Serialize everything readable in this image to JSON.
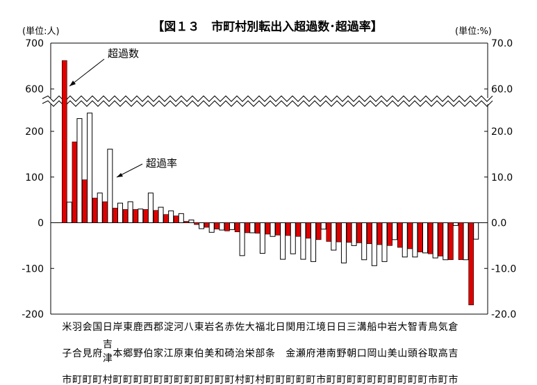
{
  "chart_data": {
    "type": "bar",
    "title": "【図１３　市町村別転出入超過数･超過率】",
    "left_unit": "(単位:人)",
    "right_unit": "(単位:%)",
    "series": [
      {
        "name": "超過数",
        "axis": "left",
        "color": "#e00000",
        "values": [
          662,
          177,
          94,
          54,
          46,
          32,
          29,
          29,
          29,
          27,
          18,
          15,
          3,
          -4,
          -10,
          -14,
          -18,
          -20,
          -22,
          -23,
          -25,
          -27,
          -28,
          -30,
          -34,
          -37,
          -41,
          -42,
          -43,
          -44,
          -46,
          -48,
          -50,
          -54,
          -57,
          -64,
          -68,
          -73,
          -81,
          -81,
          -180
        ]
      },
      {
        "name": "超過率",
        "axis": "right",
        "color": "#ffffff",
        "values": [
          4.5,
          22.8,
          24.0,
          6.5,
          16.1,
          4.3,
          4.6,
          3.0,
          6.5,
          3.4,
          2.6,
          2.0,
          0.6,
          -1.3,
          -2.1,
          -1.6,
          -1.5,
          -7.2,
          -2.2,
          -6.7,
          -3.0,
          -8.0,
          -6.8,
          -8.0,
          -8.5,
          -1.4,
          -6.0,
          -8.8,
          -5.0,
          -8.1,
          -9.4,
          -8.5,
          -3.7,
          -7.5,
          -7.5,
          -6.6,
          -7.7,
          -8.1,
          -0.6,
          -8.1,
          -3.6
        ]
      }
    ],
    "categories": [
      [
        "米",
        "子",
        "市"
      ],
      [
        "羽",
        "合",
        "町"
      ],
      [
        "会",
        "見",
        "町"
      ],
      [
        "国",
        "府",
        "町"
      ],
      [
        "日",
        "吉津",
        "村"
      ],
      [
        "岸",
        "本",
        "町"
      ],
      [
        "東",
        "郷",
        "町"
      ],
      [
        "鹿",
        "野",
        "町"
      ],
      [
        "西",
        "伯",
        "町"
      ],
      [
        "郡",
        "家",
        "町"
      ],
      [
        "淀",
        "江",
        "町"
      ],
      [
        "河",
        "原",
        "町"
      ],
      [
        "八",
        "東",
        "町"
      ],
      [
        "東",
        "伯",
        "町"
      ],
      [
        "岩",
        "美",
        "町"
      ],
      [
        "名",
        "和",
        "町"
      ],
      [
        "赤",
        "碕",
        "町"
      ],
      [
        "佐",
        "治",
        "村"
      ],
      [
        "大",
        "栄",
        "町"
      ],
      [
        "福",
        "部",
        "村"
      ],
      [
        "北",
        "条",
        "町"
      ],
      [
        "日",
        "",
        "町"
      ],
      [
        "関",
        "金",
        "町"
      ],
      [
        "用",
        "瀬",
        "町"
      ],
      [
        "江",
        "府",
        "町"
      ],
      [
        "境",
        "港",
        "市"
      ],
      [
        "日",
        "南",
        "町"
      ],
      [
        "日",
        "野",
        "町"
      ],
      [
        "三",
        "朝",
        "町"
      ],
      [
        "溝",
        "口",
        "町"
      ],
      [
        "船",
        "岡",
        "町"
      ],
      [
        "中",
        "山",
        "町"
      ],
      [
        "岩",
        "美",
        "町"
      ],
      [
        "大",
        "山",
        "町"
      ],
      [
        "智",
        "頭",
        "町"
      ],
      [
        "青",
        "谷",
        "町"
      ],
      [
        "鳥",
        "取",
        "市"
      ],
      [
        "気",
        "高",
        "町"
      ],
      [
        "倉",
        "吉",
        "市"
      ],
      [
        "",
        "",
        ""
      ],
      [
        "",
        "",
        ""
      ]
    ],
    "left_axis": {
      "lower_range": [
        -200,
        200
      ],
      "upper_range": [
        600,
        700
      ],
      "ticks": [
        "-200",
        "-100",
        "0",
        "100",
        "200",
        "600",
        "700"
      ]
    },
    "right_axis": {
      "lower_range": [
        -20.0,
        20.0
      ],
      "upper_range": [
        60.0,
        70.0
      ],
      "ticks": [
        "-20.0",
        "-10.0",
        "0.0",
        "10.0",
        "20.0",
        "60.0",
        "70.0"
      ]
    },
    "annotations": [
      "超過数",
      "超過率"
    ],
    "grid": false,
    "legend": "none"
  }
}
